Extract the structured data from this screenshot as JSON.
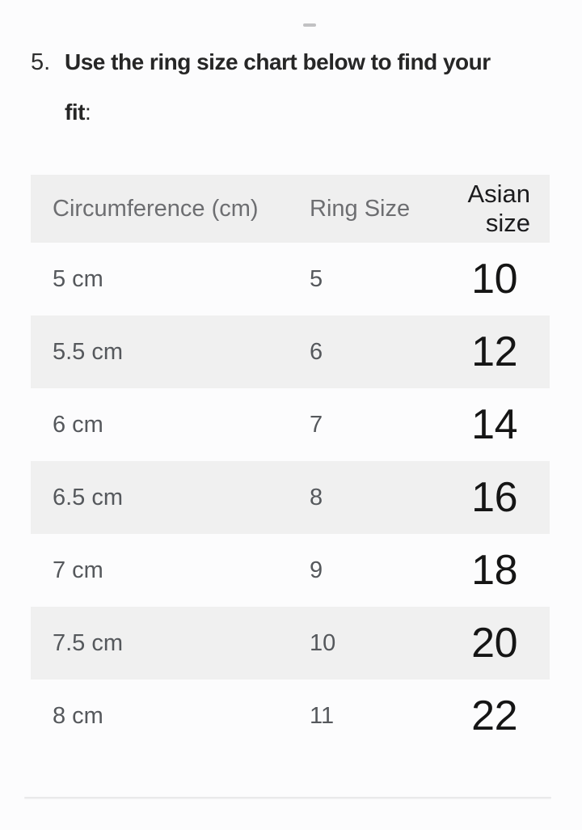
{
  "sheet": {
    "drag_handle_icon": "dash"
  },
  "title": {
    "number": "5.",
    "line1": "Use the ring size chart below to find your",
    "line2": "fit",
    "suffix": ":"
  },
  "table": {
    "headers": {
      "circumference": "Circumference (cm)",
      "ring_size": "Ring Size",
      "asian_size": "Asian size"
    },
    "rows": [
      {
        "circumference": "5 cm",
        "ring_size": "5",
        "asian_size": "10"
      },
      {
        "circumference": "5.5 cm",
        "ring_size": "6",
        "asian_size": "12"
      },
      {
        "circumference": "6 cm",
        "ring_size": "7",
        "asian_size": "14"
      },
      {
        "circumference": "6.5 cm",
        "ring_size": "8",
        "asian_size": "16"
      },
      {
        "circumference": "7 cm",
        "ring_size": "9",
        "asian_size": "18"
      },
      {
        "circumference": "7.5 cm",
        "ring_size": "10",
        "asian_size": "20"
      },
      {
        "circumference": "8 cm",
        "ring_size": "11",
        "asian_size": "22"
      }
    ]
  },
  "colors": {
    "stripe_background": "#f0f0f0",
    "header_background": "#efefef",
    "header_text": "#6d6e71",
    "data_text": "#55585c",
    "emphasis_text": "#151515",
    "title_text": "#262626",
    "divider": "#e9e9ea",
    "drag_handle": "#c1c1c3"
  }
}
